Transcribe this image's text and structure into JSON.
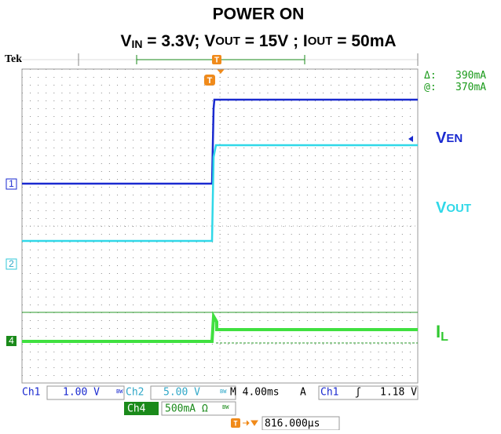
{
  "header": {
    "title": "POWER ON",
    "subtitle": [
      "V",
      "IN",
      " = 3.3V; V",
      "OUT",
      " = 15V ; I",
      "OUT",
      " = 50mA"
    ],
    "brand": "Tek",
    "trigger_mark": "T"
  },
  "cursor": {
    "delta": [
      "Δ:",
      "390mA"
    ],
    "at": [
      "@:",
      "370mA"
    ]
  },
  "labels": {
    "ven": [
      "V",
      "EN"
    ],
    "vout": [
      "V",
      "OUT"
    ],
    "il": [
      "I",
      "L"
    ]
  },
  "channels": [
    "1",
    "2",
    "4"
  ],
  "readout": {
    "ch1": [
      "Ch1",
      "1.00 V"
    ],
    "ch2": [
      "Ch2",
      "5.00 V"
    ],
    "bw": "BW",
    "timebase": "M 4.00ms",
    "trig": [
      "A",
      "Ch1",
      "ʃ",
      "1.18 V"
    ],
    "ch4": [
      "Ch4",
      "500mA Ω"
    ],
    "position": "816.000µs"
  }
}
